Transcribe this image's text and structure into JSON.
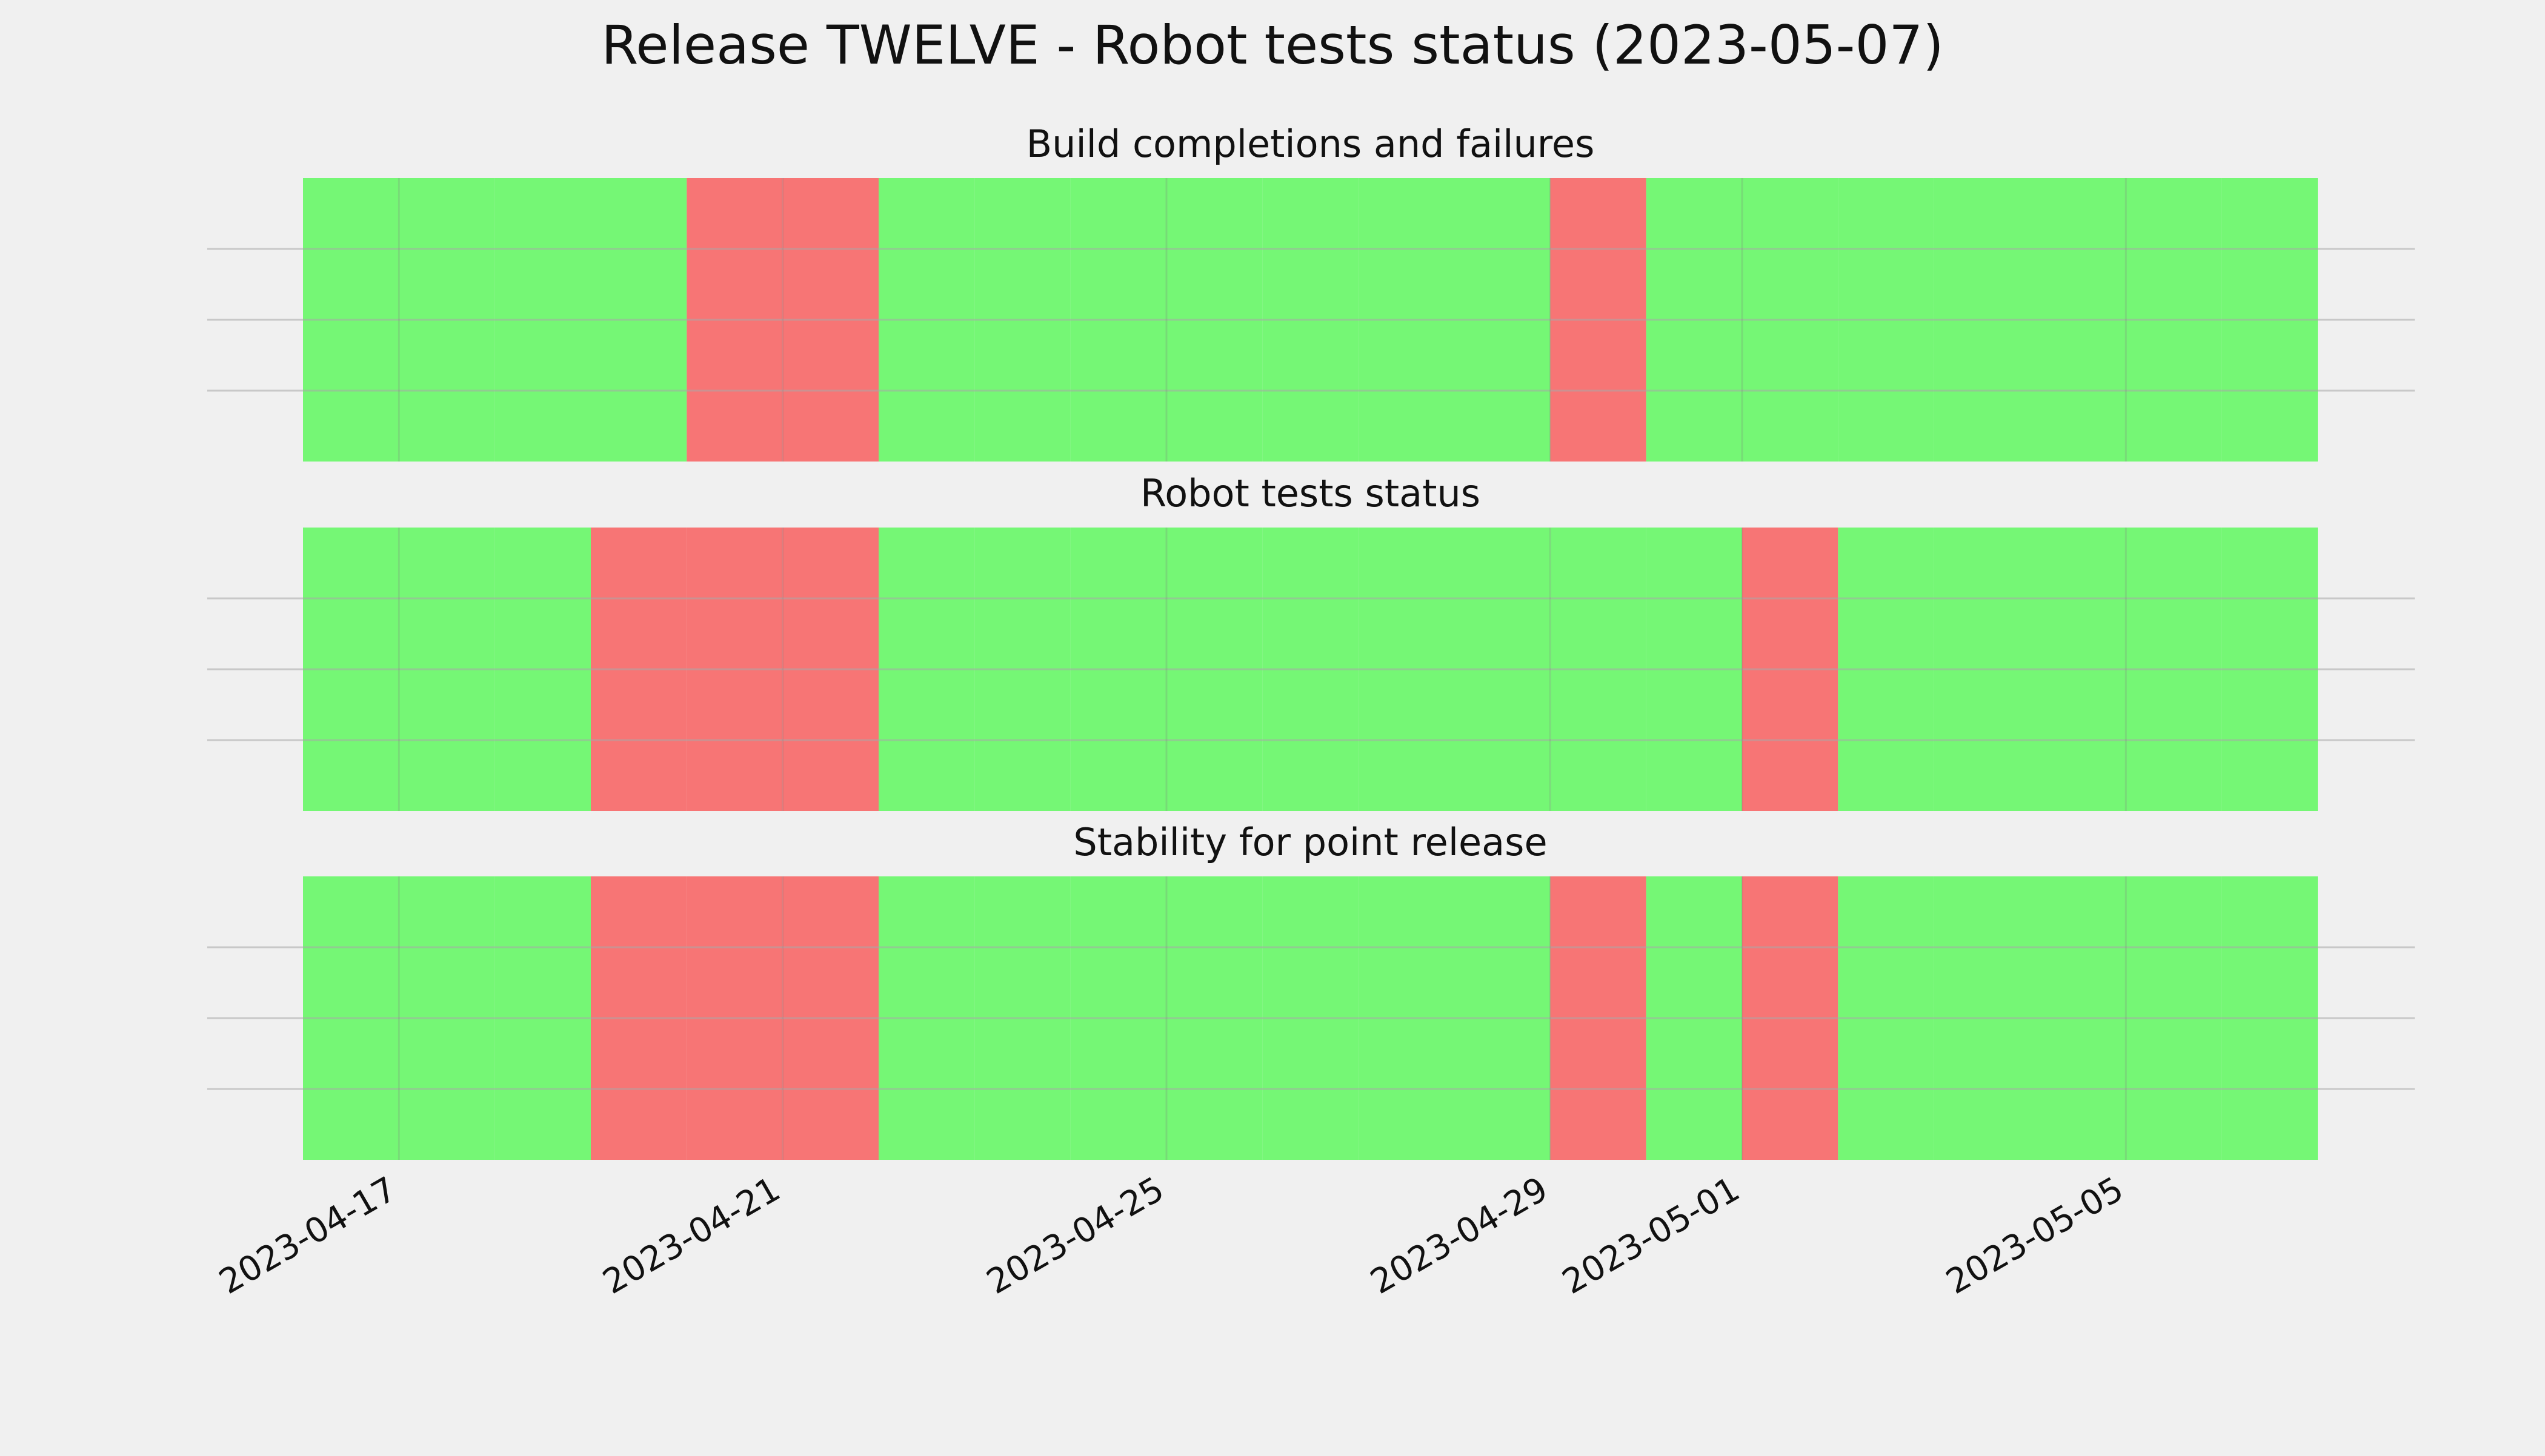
{
  "chart_data": {
    "type": "timeline",
    "title": "Release TWELVE - Robot tests status (2023-05-07)",
    "x_start": "2023-04-16",
    "x_end": "2023-05-07",
    "x_ticks": [
      "2023-04-17",
      "2023-04-21",
      "2023-04-25",
      "2023-04-29",
      "2023-05-01",
      "2023-05-05"
    ],
    "grid": true,
    "colors": {
      "pass": "#75f775",
      "fail": "#f77575",
      "background": "#f0f0f0",
      "grid": "#cbcbcb"
    },
    "panels": [
      {
        "title": "Build completions and failures",
        "days": [
          {
            "date": "2023-04-16",
            "status": "pass"
          },
          {
            "date": "2023-04-17",
            "status": "pass"
          },
          {
            "date": "2023-04-18",
            "status": "pass"
          },
          {
            "date": "2023-04-19",
            "status": "pass"
          },
          {
            "date": "2023-04-20",
            "status": "fail"
          },
          {
            "date": "2023-04-21",
            "status": "fail"
          },
          {
            "date": "2023-04-22",
            "status": "pass"
          },
          {
            "date": "2023-04-23",
            "status": "pass"
          },
          {
            "date": "2023-04-24",
            "status": "pass"
          },
          {
            "date": "2023-04-25",
            "status": "pass"
          },
          {
            "date": "2023-04-26",
            "status": "pass"
          },
          {
            "date": "2023-04-27",
            "status": "pass"
          },
          {
            "date": "2023-04-28",
            "status": "pass"
          },
          {
            "date": "2023-04-29",
            "status": "fail"
          },
          {
            "date": "2023-04-30",
            "status": "pass"
          },
          {
            "date": "2023-05-01",
            "status": "pass"
          },
          {
            "date": "2023-05-02",
            "status": "pass"
          },
          {
            "date": "2023-05-03",
            "status": "pass"
          },
          {
            "date": "2023-05-04",
            "status": "pass"
          },
          {
            "date": "2023-05-05",
            "status": "pass"
          },
          {
            "date": "2023-05-06",
            "status": "pass"
          }
        ]
      },
      {
        "title": "Robot tests status",
        "days": [
          {
            "date": "2023-04-16",
            "status": "pass"
          },
          {
            "date": "2023-04-17",
            "status": "pass"
          },
          {
            "date": "2023-04-18",
            "status": "pass"
          },
          {
            "date": "2023-04-19",
            "status": "fail"
          },
          {
            "date": "2023-04-20",
            "status": "fail"
          },
          {
            "date": "2023-04-21",
            "status": "fail"
          },
          {
            "date": "2023-04-22",
            "status": "pass"
          },
          {
            "date": "2023-04-23",
            "status": "pass"
          },
          {
            "date": "2023-04-24",
            "status": "pass"
          },
          {
            "date": "2023-04-25",
            "status": "pass"
          },
          {
            "date": "2023-04-26",
            "status": "pass"
          },
          {
            "date": "2023-04-27",
            "status": "pass"
          },
          {
            "date": "2023-04-28",
            "status": "pass"
          },
          {
            "date": "2023-04-29",
            "status": "pass"
          },
          {
            "date": "2023-04-30",
            "status": "pass"
          },
          {
            "date": "2023-05-01",
            "status": "fail"
          },
          {
            "date": "2023-05-02",
            "status": "pass"
          },
          {
            "date": "2023-05-03",
            "status": "pass"
          },
          {
            "date": "2023-05-04",
            "status": "pass"
          },
          {
            "date": "2023-05-05",
            "status": "pass"
          },
          {
            "date": "2023-05-06",
            "status": "pass"
          }
        ]
      },
      {
        "title": "Stability for point release",
        "days": [
          {
            "date": "2023-04-16",
            "status": "pass"
          },
          {
            "date": "2023-04-17",
            "status": "pass"
          },
          {
            "date": "2023-04-18",
            "status": "pass"
          },
          {
            "date": "2023-04-19",
            "status": "fail"
          },
          {
            "date": "2023-04-20",
            "status": "fail"
          },
          {
            "date": "2023-04-21",
            "status": "fail"
          },
          {
            "date": "2023-04-22",
            "status": "pass"
          },
          {
            "date": "2023-04-23",
            "status": "pass"
          },
          {
            "date": "2023-04-24",
            "status": "pass"
          },
          {
            "date": "2023-04-25",
            "status": "pass"
          },
          {
            "date": "2023-04-26",
            "status": "pass"
          },
          {
            "date": "2023-04-27",
            "status": "pass"
          },
          {
            "date": "2023-04-28",
            "status": "pass"
          },
          {
            "date": "2023-04-29",
            "status": "fail"
          },
          {
            "date": "2023-04-30",
            "status": "pass"
          },
          {
            "date": "2023-05-01",
            "status": "fail"
          },
          {
            "date": "2023-05-02",
            "status": "pass"
          },
          {
            "date": "2023-05-03",
            "status": "pass"
          },
          {
            "date": "2023-05-04",
            "status": "pass"
          },
          {
            "date": "2023-05-05",
            "status": "pass"
          },
          {
            "date": "2023-05-06",
            "status": "pass"
          }
        ]
      }
    ]
  }
}
